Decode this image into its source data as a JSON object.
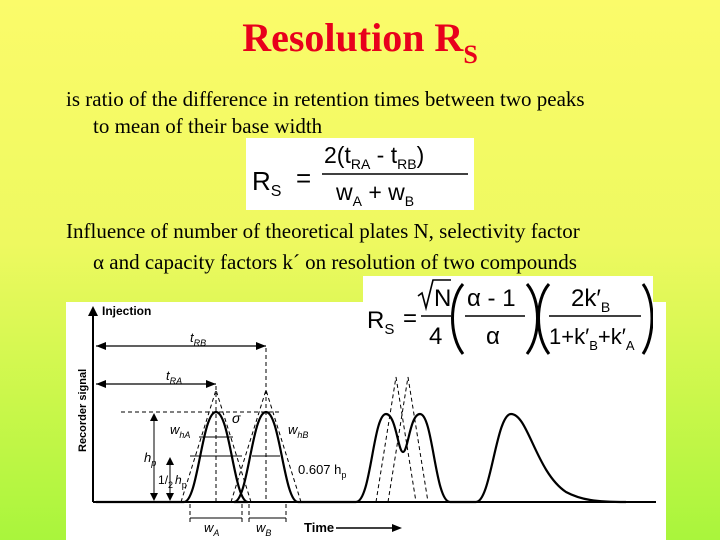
{
  "slide": {
    "title_main": "Resolution  R",
    "title_sub": "S",
    "definition_line1": "is ratio of the difference in retention times between two peaks",
    "definition_line2": "to mean of their base width",
    "influence_line1": "Influence of number of theoretical plates N, selectivity factor",
    "influence_alpha": "α",
    "influence_line2": " and capacity factors k´ on resolution of two compounds"
  },
  "formula1": {
    "lhs_main": "R",
    "lhs_sub": "S",
    "equals": "=",
    "numerator": "2(t",
    "num_sub_a": "RA",
    "num_minus": " - t",
    "num_sub_b": "RB",
    "num_close": ")",
    "den_w1": "w",
    "den_sub_a": "A",
    "den_plus": " + w",
    "den_sub_b": "B"
  },
  "formula2": {
    "lhs_main": "R",
    "lhs_sub": "S",
    "equals": "=",
    "sqrt_n": "N",
    "four": "4",
    "alpha_num": "α - 1",
    "alpha_den": "α",
    "k_num": "2k",
    "k_num_sub": "B",
    "k_den": "1+k",
    "k_den_sub1": "B",
    "k_den_plus": "+k",
    "k_den_sub2": "A",
    "prime": "′"
  },
  "chromatogram": {
    "injection_label": "Injection",
    "y_axis_label": "Recorder signal",
    "x_axis_label": "Time",
    "trb_t": "t",
    "trb_sub": "RB",
    "tra_t": "t",
    "tra_sub": "RA",
    "sigma": "σ",
    "wha_w": "w",
    "wha_sub": "hA",
    "whb_w": "w",
    "whb_sub": "hB",
    "hp_h": "h",
    "hp_sub": "p",
    "half_num": "1",
    "half_den": "2",
    "half_h": "h",
    "half_sub": "p",
    "frac_0607": "0.607 h",
    "frac_0607_sub": "p",
    "wa_w": "w",
    "wa_sub": "A",
    "wb_w": "w",
    "wb_sub": "B"
  }
}
